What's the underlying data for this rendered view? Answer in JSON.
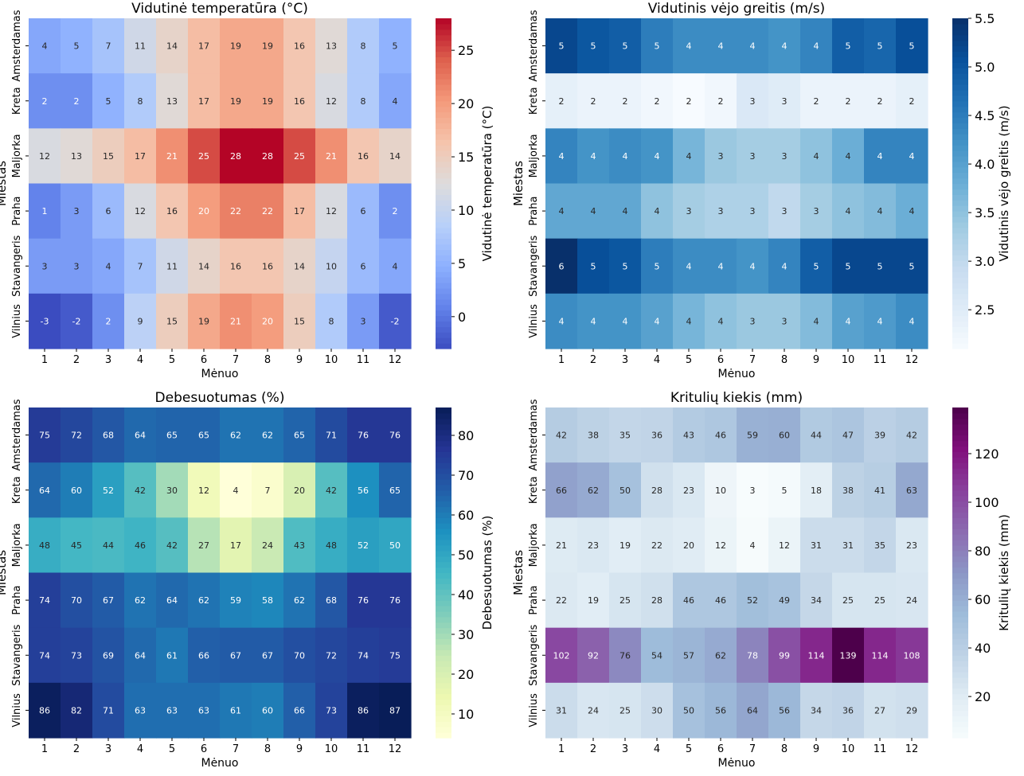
{
  "figure": {
    "ylabel": "Miestas",
    "xlabel": "Mėnuo"
  },
  "chart_data": [
    {
      "type": "heatmap",
      "title": "Vidutinė temperatūra (°C)",
      "xlabel": "Mėnuo",
      "ylabel": "Miestas",
      "colorbar_label": "Vidutinė temperatūra (°C)",
      "colormap": "coolwarm",
      "value_range": [
        -3,
        28
      ],
      "colorbar_ticks": [
        0,
        5,
        10,
        15,
        20,
        25
      ],
      "text_color_rule": "diverging",
      "x": [
        "1",
        "2",
        "3",
        "4",
        "5",
        "6",
        "7",
        "8",
        "9",
        "10",
        "11",
        "12"
      ],
      "y": [
        "Amsterdamas",
        "Kreta",
        "Maljorka",
        "Praha",
        "Stavangeris",
        "Vilnius"
      ],
      "values": [
        [
          4,
          5,
          7,
          11,
          14,
          17,
          19,
          19,
          16,
          13,
          8,
          5
        ],
        [
          2,
          2,
          5,
          8,
          13,
          17,
          19,
          19,
          16,
          12,
          8,
          4
        ],
        [
          12,
          13,
          15,
          17,
          21,
          25,
          28,
          28,
          25,
          21,
          16,
          14
        ],
        [
          1,
          3,
          6,
          12,
          16,
          20,
          22,
          22,
          17,
          12,
          6,
          2
        ],
        [
          3,
          3,
          4,
          7,
          11,
          14,
          16,
          16,
          14,
          10,
          6,
          4
        ],
        [
          -3,
          -2,
          2,
          9,
          15,
          19,
          21,
          20,
          15,
          8,
          3,
          -2
        ]
      ]
    },
    {
      "type": "heatmap",
      "title": "Vidutinis vėjo greitis (m/s)",
      "xlabel": "Mėnuo",
      "ylabel": "Miestas",
      "colorbar_label": "Vidutinis vėjo greitis (m/s)",
      "colormap": "Blues",
      "value_range": [
        2.1,
        5.5
      ],
      "colorbar_ticks": [
        2.5,
        3.0,
        3.5,
        4.0,
        4.5,
        5.0,
        5.5
      ],
      "text_color_rule": "sequential",
      "x": [
        "1",
        "2",
        "3",
        "4",
        "5",
        "6",
        "7",
        "8",
        "9",
        "10",
        "11",
        "12"
      ],
      "y": [
        "Amsterdamas",
        "Kreta",
        "Maljorka",
        "Praha",
        "Stavangeris",
        "Vilnius"
      ],
      "values": [
        [
          5.2,
          5.0,
          4.9,
          4.5,
          4.3,
          4.3,
          4.3,
          4.2,
          4.4,
          4.9,
          4.8,
          5.1
        ],
        [
          2.4,
          2.3,
          2.3,
          2.2,
          2.1,
          2.2,
          2.6,
          2.5,
          2.3,
          2.3,
          2.3,
          2.4
        ],
        [
          4.4,
          4.2,
          4.3,
          4.2,
          3.7,
          3.4,
          3.3,
          3.3,
          3.5,
          3.8,
          4.4,
          4.4
        ],
        [
          3.9,
          3.9,
          3.9,
          3.5,
          3.3,
          3.2,
          3.2,
          3.0,
          3.3,
          3.5,
          3.6,
          3.8
        ],
        [
          5.5,
          5.1,
          5.0,
          4.5,
          4.3,
          4.3,
          4.2,
          4.4,
          4.9,
          5.2,
          5.2,
          5.2
        ],
        [
          4.3,
          4.2,
          4.2,
          4.0,
          3.7,
          3.5,
          3.4,
          3.4,
          3.6,
          4.0,
          4.1,
          4.3
        ]
      ]
    },
    {
      "type": "heatmap",
      "title": "Debesuotumas (%)",
      "xlabel": "Mėnuo",
      "ylabel": "Miestas",
      "colorbar_label": "Debesuotumas (%)",
      "colormap": "YlGnBu",
      "value_range": [
        4,
        87
      ],
      "colorbar_ticks": [
        10,
        20,
        30,
        40,
        50,
        60,
        70,
        80
      ],
      "text_color_rule": "sequential",
      "x": [
        "1",
        "2",
        "3",
        "4",
        "5",
        "6",
        "7",
        "8",
        "9",
        "10",
        "11",
        "12"
      ],
      "y": [
        "Amsterdamas",
        "Kreta",
        "Maljorka",
        "Praha",
        "Stavangeris",
        "Vilnius"
      ],
      "values": [
        [
          75,
          72,
          68,
          64,
          65,
          65,
          62,
          62,
          65,
          71,
          76,
          76
        ],
        [
          64,
          60,
          52,
          42,
          30,
          12,
          4,
          7,
          20,
          42,
          56,
          65
        ],
        [
          48,
          45,
          44,
          46,
          42,
          27,
          17,
          24,
          43,
          48,
          52,
          50
        ],
        [
          74,
          70,
          67,
          62,
          64,
          62,
          59,
          58,
          62,
          68,
          76,
          76
        ],
        [
          74,
          73,
          69,
          64,
          61,
          66,
          67,
          67,
          70,
          72,
          74,
          75
        ],
        [
          86,
          82,
          71,
          63,
          63,
          63,
          61,
          60,
          66,
          73,
          86,
          87
        ]
      ]
    },
    {
      "type": "heatmap",
      "title": "Kritulių kiekis (mm)",
      "xlabel": "Mėnuo",
      "ylabel": "Miestas",
      "colorbar_label": "Kritulių kiekis (mm)",
      "colormap": "BuPu",
      "value_range": [
        3,
        139
      ],
      "colorbar_ticks": [
        20,
        40,
        60,
        80,
        100,
        120
      ],
      "text_color_rule": "sequential",
      "x": [
        "1",
        "2",
        "3",
        "4",
        "5",
        "6",
        "7",
        "8",
        "9",
        "10",
        "11",
        "12"
      ],
      "y": [
        "Amsterdamas",
        "Kreta",
        "Maljorka",
        "Praha",
        "Stavangeris",
        "Vilnius"
      ],
      "values": [
        [
          42,
          38,
          35,
          36,
          43,
          46,
          59,
          60,
          44,
          47,
          39,
          42
        ],
        [
          66,
          62,
          50,
          28,
          23,
          10,
          3,
          5,
          18,
          38,
          41,
          63
        ],
        [
          21,
          23,
          19,
          22,
          20,
          12,
          4,
          12,
          31,
          31,
          35,
          23
        ],
        [
          22,
          19,
          25,
          28,
          46,
          46,
          52,
          49,
          34,
          25,
          25,
          24
        ],
        [
          102,
          92,
          76,
          54,
          57,
          62,
          78,
          99,
          114,
          139,
          114,
          108
        ],
        [
          31,
          24,
          25,
          30,
          50,
          56,
          64,
          56,
          34,
          36,
          27,
          29
        ]
      ]
    }
  ]
}
